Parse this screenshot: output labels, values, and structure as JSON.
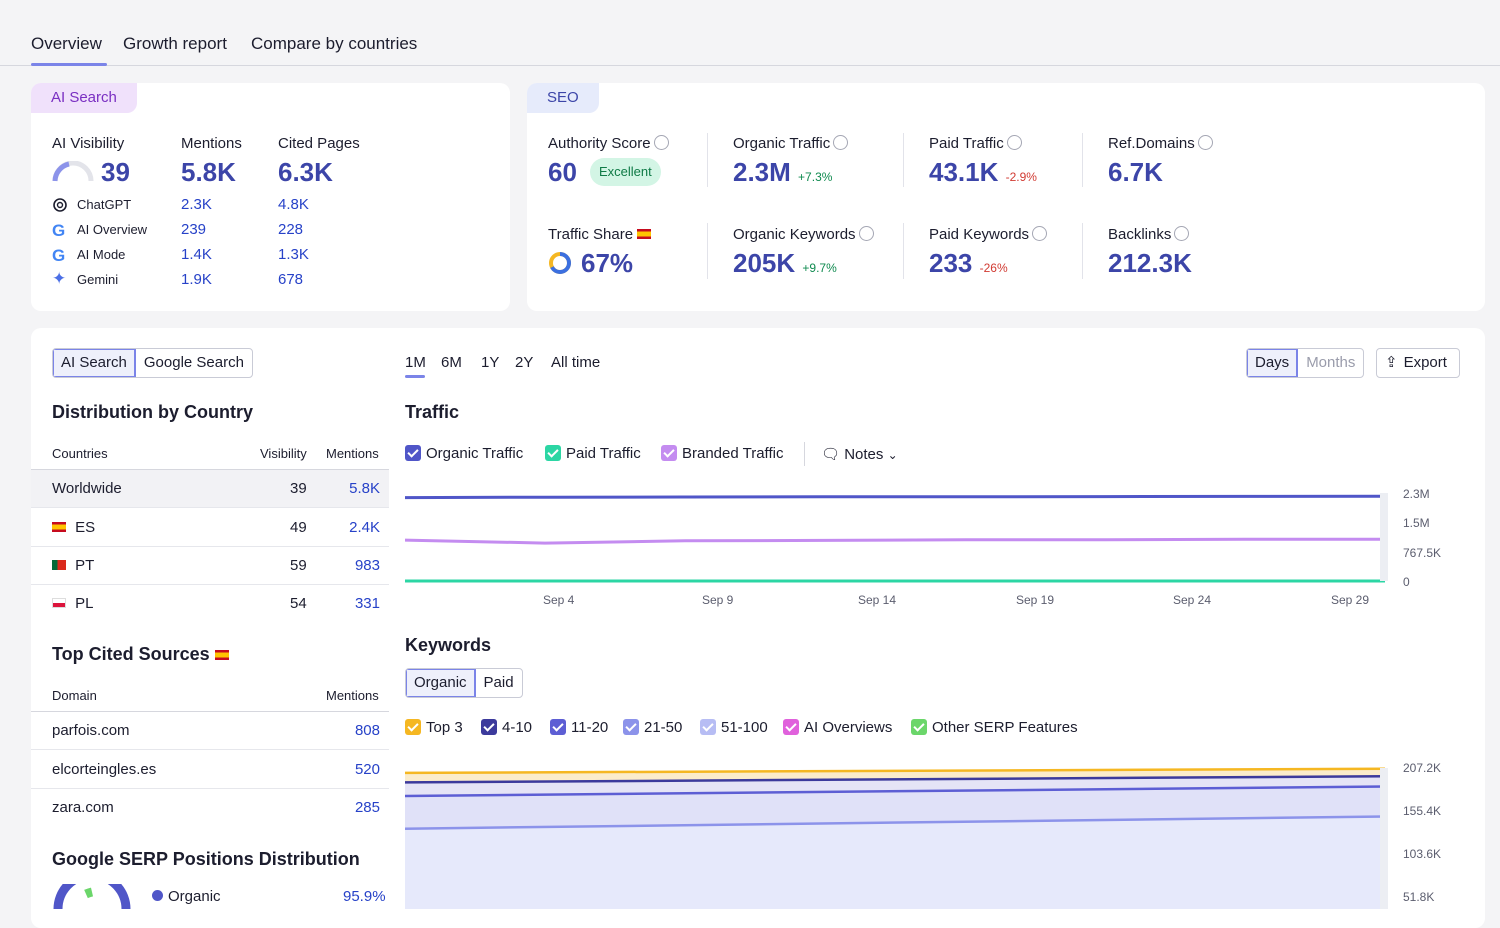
{
  "tabs": [
    "Overview",
    "Growth report",
    "Compare by countries"
  ],
  "ai_search": {
    "pill": "AI Search",
    "visibility_label": "AI Visibility",
    "visibility_value": "39",
    "mentions_label": "Mentions",
    "mentions_value": "5.8K",
    "cited_label": "Cited Pages",
    "cited_value": "6.3K",
    "engines": [
      {
        "name": "ChatGPT",
        "mentions": "2.3K",
        "cited": "4.8K",
        "icon": "chatgpt-icon"
      },
      {
        "name": "AI Overview",
        "mentions": "239",
        "cited": "228",
        "icon": "google-icon"
      },
      {
        "name": "AI Mode",
        "mentions": "1.4K",
        "cited": "1.3K",
        "icon": "google-icon"
      },
      {
        "name": "Gemini",
        "mentions": "1.9K",
        "cited": "678",
        "icon": "gemini-icon"
      }
    ]
  },
  "seo": {
    "pill": "SEO",
    "authority_label": "Authority Score",
    "authority_value": "60",
    "authority_badge": "Excellent",
    "organic_traffic_label": "Organic Traffic",
    "organic_traffic_value": "2.3M",
    "organic_traffic_change": "+7.3%",
    "paid_traffic_label": "Paid Traffic",
    "paid_traffic_value": "43.1K",
    "paid_traffic_change": "-2.9%",
    "ref_domains_label": "Ref.Domains",
    "ref_domains_value": "6.7K",
    "traffic_share_label": "Traffic Share",
    "traffic_share_value": "67%",
    "traffic_share_fraction": 0.67,
    "organic_keywords_label": "Organic Keywords",
    "organic_keywords_value": "205K",
    "organic_keywords_change": "+9.7%",
    "paid_keywords_label": "Paid Keywords",
    "paid_keywords_value": "233",
    "paid_keywords_change": "-26%",
    "backlinks_label": "Backlinks",
    "backlinks_value": "212.3K"
  },
  "left": {
    "toggle": [
      "AI Search",
      "Google Search"
    ],
    "dist_title": "Distribution by Country",
    "dist_headers": [
      "Countries",
      "Visibility",
      "Mentions"
    ],
    "countries": [
      {
        "name": "Worldwide",
        "visibility": "39",
        "mentions": "5.8K",
        "flag": ""
      },
      {
        "name": "ES",
        "visibility": "49",
        "mentions": "2.4K",
        "flag": "es"
      },
      {
        "name": "PT",
        "visibility": "59",
        "mentions": "983",
        "flag": "pt"
      },
      {
        "name": "PL",
        "visibility": "54",
        "mentions": "331",
        "flag": "pl"
      }
    ],
    "cited_title": "Top Cited Sources",
    "cited_headers": [
      "Domain",
      "Mentions"
    ],
    "sources": [
      {
        "domain": "parfois.com",
        "mentions": "808"
      },
      {
        "domain": "elcorteingles.es",
        "mentions": "520"
      },
      {
        "domain": "zara.com",
        "mentions": "285"
      }
    ],
    "serp_title": "Google SERP Positions Distribution",
    "serp_legend": {
      "label": "Organic",
      "value": "95.9%"
    }
  },
  "periods": [
    "1M",
    "6M",
    "1Y",
    "2Y",
    "All time"
  ],
  "granularity": [
    "Days",
    "Months"
  ],
  "export_label": "Export",
  "traffic": {
    "title": "Traffic",
    "legend": [
      "Organic Traffic",
      "Paid Traffic",
      "Branded Traffic"
    ],
    "notes_label": "Notes",
    "x_ticks": [
      "Sep 4",
      "Sep 9",
      "Sep 14",
      "Sep 19",
      "Sep 24",
      "Sep 29"
    ],
    "y_ticks": [
      "2.3M",
      "1.5M",
      "767.5K",
      "0"
    ]
  },
  "keywords": {
    "title": "Keywords",
    "toggle": [
      "Organic",
      "Paid"
    ],
    "legend": [
      "Top 3",
      "4-10",
      "11-20",
      "21-50",
      "51-100",
      "AI Overviews",
      "Other SERP Features"
    ],
    "y_ticks": [
      "207.2K",
      "155.4K",
      "103.6K",
      "51.8K"
    ]
  },
  "colors": {
    "accent": "#7b84e8",
    "organic": "#5056c8",
    "paid": "#2cd6a4",
    "branded": "#c48cf0",
    "top3": "#f5b722",
    "k410": "#3c3a9c",
    "k1120": "#5d5ed4",
    "k2150": "#8c93ea",
    "k51100": "#b7bdf4",
    "aio": "#e061dc",
    "other": "#6bd66a"
  },
  "chart_data": [
    {
      "type": "line",
      "title": "Traffic",
      "x": [
        "Sep 1",
        "Sep 4",
        "Sep 9",
        "Sep 14",
        "Sep 19",
        "Sep 24",
        "Sep 29",
        "Sep 30"
      ],
      "ylim": [
        0,
        2300000
      ],
      "series": [
        {
          "name": "Organic Traffic",
          "values": [
            2180000,
            2190000,
            2195000,
            2200000,
            2200000,
            2205000,
            2210000,
            2215000
          ]
        },
        {
          "name": "Paid Traffic",
          "values": [
            0,
            0,
            0,
            0,
            0,
            0,
            0,
            0
          ]
        },
        {
          "name": "Branded Traffic",
          "values": [
            1070000,
            990000,
            1050000,
            1060000,
            1080000,
            1080000,
            1090000,
            1090000
          ]
        }
      ]
    },
    {
      "type": "area",
      "title": "Keywords",
      "x": [
        "Sep 1",
        "Sep 30"
      ],
      "ylim": [
        0,
        207200
      ],
      "series": [
        {
          "name": "Top 3",
          "values": [
            200000,
            206000
          ]
        },
        {
          "name": "4-10",
          "values": [
            186000,
            195000
          ]
        },
        {
          "name": "11-20",
          "values": [
            166000,
            180000
          ]
        },
        {
          "name": "21-50",
          "values": [
            118000,
            136000
          ]
        }
      ]
    }
  ]
}
